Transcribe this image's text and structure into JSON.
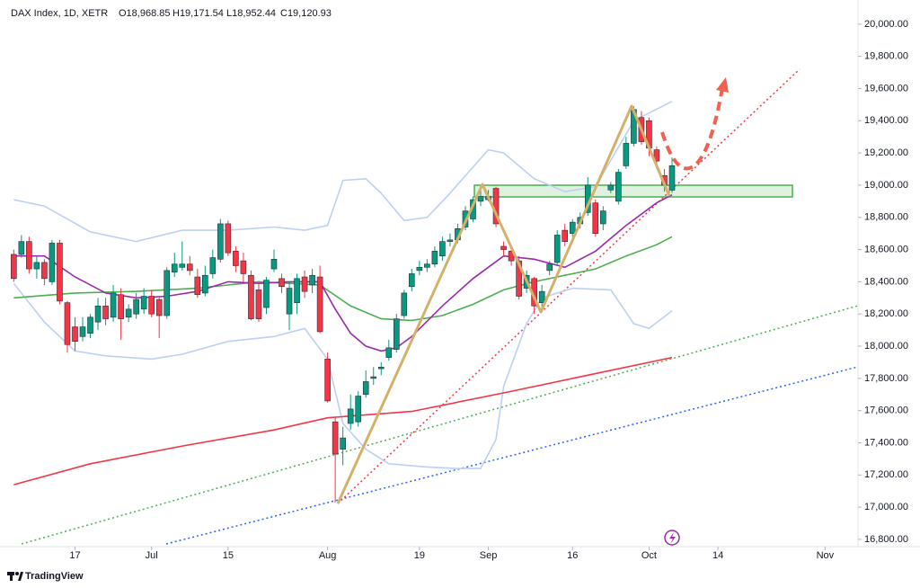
{
  "chart_data": {
    "type": "candlestick",
    "title": "DAX Index, 1D, XETR",
    "ohlc_labels": [
      "O18,968.85",
      "H19,171.54",
      "L18,952.44",
      "C19,120.93"
    ],
    "brand": "TradingView",
    "up_color": "#089981",
    "down_color": "#f23645",
    "grid": false,
    "x": [
      0,
      1,
      2,
      3,
      4,
      5,
      6,
      7,
      8,
      9,
      10,
      11,
      12,
      13,
      14,
      15,
      16,
      17,
      18,
      19,
      20,
      21,
      22,
      23,
      24,
      25,
      26,
      27,
      28,
      29,
      30,
      31,
      32,
      33,
      34,
      35,
      36,
      37,
      38,
      39,
      40,
      41,
      42,
      43,
      44,
      45,
      46,
      47,
      48,
      49,
      50,
      51,
      52,
      53,
      54,
      55,
      56,
      57,
      58,
      59,
      60,
      61,
      62,
      63,
      64,
      65,
      66,
      67,
      68,
      69,
      70,
      71,
      72,
      73,
      74,
      75,
      76,
      77,
      78,
      79,
      80,
      81,
      82,
      83,
      84,
      85,
      86
    ],
    "open": [
      18570,
      18570,
      18650,
      18480,
      18520,
      18400,
      18640,
      18270,
      18120,
      18060,
      18080,
      18150,
      18250,
      18180,
      18320,
      18180,
      18200,
      18230,
      18310,
      18290,
      18190,
      18460,
      18490,
      18510,
      18430,
      18330,
      18450,
      18540,
      18760,
      18590,
      18530,
      18440,
      18350,
      18240,
      18480,
      18420,
      18200,
      18270,
      18430,
      18380,
      18430,
      17920,
      17530,
      17360,
      17520,
      17530,
      17700,
      17800,
      17860,
      17930,
      17980,
      18190,
      18370,
      18470,
      18490,
      18510,
      18560,
      18650,
      18660,
      18740,
      18790,
      18900,
      18910,
      18980,
      18620,
      18590,
      18530,
      18360,
      18420,
      18270,
      18470,
      18520,
      18720,
      18700,
      18760,
      18830,
      18890,
      18760,
      18970,
      18900,
      19120,
      19260,
      19420,
      19400,
      19220,
      19060,
      18968.85
    ],
    "high": [
      18600,
      18690,
      18680,
      18560,
      18540,
      18660,
      18660,
      18280,
      18180,
      18180,
      18200,
      18300,
      18300,
      18380,
      18360,
      18260,
      18330,
      18360,
      18350,
      18310,
      18490,
      18580,
      18650,
      18560,
      18480,
      18500,
      18600,
      18790,
      18780,
      18620,
      18580,
      18470,
      18400,
      18430,
      18600,
      18450,
      18400,
      18450,
      18470,
      18480,
      18500,
      17960,
      17560,
      17500,
      17700,
      17720,
      17850,
      17870,
      17900,
      18040,
      18200,
      18350,
      18480,
      18530,
      18540,
      18620,
      18680,
      18700,
      18760,
      18870,
      18930,
      18990,
      18970,
      18990,
      18650,
      18600,
      18560,
      18470,
      18430,
      18380,
      18530,
      18720,
      18760,
      18790,
      18830,
      19050,
      18910,
      18870,
      19020,
      19100,
      19300,
      19490,
      19460,
      19420,
      19240,
      19100,
      19171.54
    ],
    "low": [
      18400,
      18550,
      18450,
      18420,
      18380,
      18380,
      18260,
      17960,
      17970,
      18030,
      18050,
      18100,
      18130,
      18150,
      18040,
      18150,
      18170,
      18200,
      18180,
      18050,
      18170,
      18430,
      18470,
      18440,
      18300,
      18310,
      18420,
      18520,
      18560,
      18460,
      18400,
      18160,
      18150,
      18200,
      18460,
      18330,
      18100,
      18200,
      18300,
      18330,
      18080,
      17650,
      17030,
      17260,
      17480,
      17500,
      17680,
      17760,
      17820,
      17910,
      17960,
      18170,
      18340,
      18440,
      18460,
      18490,
      18530,
      18620,
      18640,
      18720,
      18770,
      18870,
      18900,
      18740,
      18560,
      18500,
      18290,
      18330,
      18200,
      18210,
      18440,
      18500,
      18620,
      18680,
      18730,
      18810,
      18680,
      18720,
      18950,
      18880,
      19100,
      19240,
      19250,
      19180,
      19100,
      18960,
      18952.44
    ],
    "close": [
      18420,
      18650,
      18480,
      18520,
      18420,
      18640,
      18280,
      18010,
      18030,
      18120,
      18180,
      18250,
      18170,
      18330,
      18170,
      18230,
      18290,
      18310,
      18200,
      18190,
      18470,
      18510,
      18510,
      18470,
      18320,
      18440,
      18550,
      18760,
      18580,
      18500,
      18450,
      18170,
      18170,
      18410,
      18540,
      18370,
      18360,
      18420,
      18340,
      18440,
      18090,
      17660,
      17330,
      17430,
      17610,
      17690,
      17780,
      17810,
      17870,
      17990,
      18170,
      18330,
      18450,
      18490,
      18510,
      18590,
      18650,
      18660,
      18730,
      18840,
      18910,
      18930,
      18930,
      18760,
      18600,
      18530,
      18310,
      18440,
      18250,
      18340,
      18510,
      18690,
      18650,
      18770,
      18800,
      19000,
      18700,
      18840,
      19000,
      19080,
      19260,
      19470,
      19270,
      19230,
      19150,
      19000,
      19120.93
    ],
    "overlays": [
      {
        "color": "#bcd0f5",
        "x": [
          0,
          4,
          10,
          16,
          22,
          28,
          34,
          38,
          41,
          43,
          46,
          48,
          51,
          54,
          57,
          62,
          64,
          68,
          72,
          76,
          81,
          86
        ],
        "values": [
          18910,
          18870,
          18710,
          18650,
          18720,
          18720,
          18740,
          18720,
          18750,
          19030,
          19040,
          18950,
          18780,
          18800,
          18950,
          19220,
          19200,
          19040,
          18960,
          18990,
          19400,
          19520
        ]
      },
      {
        "color": "#bcd0f5",
        "x": [
          0,
          4,
          8,
          12,
          18,
          22,
          28,
          34,
          38,
          41,
          43,
          46,
          49,
          54,
          58,
          61,
          63,
          64,
          67,
          69,
          73,
          78,
          81,
          83,
          86
        ],
        "values": [
          18390,
          18150,
          17970,
          17940,
          17920,
          17950,
          18030,
          18060,
          18110,
          17920,
          17520,
          17360,
          17270,
          17250,
          17240,
          17240,
          17420,
          17750,
          18140,
          18300,
          18360,
          18350,
          18140,
          18110,
          18220
        ]
      },
      {
        "color": "#4caf50",
        "x": [
          0,
          8,
          16,
          24,
          32,
          40,
          44,
          48,
          52,
          56,
          60,
          64,
          68,
          72,
          76,
          80,
          84,
          86
        ],
        "values": [
          18300,
          18330,
          18340,
          18360,
          18400,
          18380,
          18250,
          18170,
          18160,
          18190,
          18260,
          18350,
          18400,
          18440,
          18480,
          18560,
          18630,
          18680
        ]
      },
      {
        "color": "#9c27b0",
        "x": [
          0,
          4,
          8,
          12,
          16,
          20,
          24,
          28,
          32,
          36,
          40,
          42,
          44,
          46,
          48,
          50,
          52,
          56,
          60,
          64,
          68,
          72,
          76,
          80,
          84,
          86
        ],
        "values": [
          18560,
          18560,
          18430,
          18330,
          18300,
          18310,
          18340,
          18400,
          18390,
          18400,
          18400,
          18230,
          18080,
          18000,
          17970,
          17990,
          18060,
          18250,
          18420,
          18560,
          18540,
          18490,
          18590,
          18750,
          18890,
          18940
        ]
      },
      {
        "color": "#f23645",
        "x": [
          0,
          10,
          22,
          34,
          41,
          52,
          64,
          75,
          86
        ],
        "values": [
          17140,
          17270,
          17380,
          17480,
          17555,
          17595,
          17710,
          17820,
          17930
        ]
      }
    ],
    "xlim": [
      -1.8,
      110.3
    ],
    "xticks": [
      {
        "value": 8,
        "label": "17"
      },
      {
        "value": 18,
        "label": "Jul"
      },
      {
        "value": 28,
        "label": "15"
      },
      {
        "value": 41,
        "label": "Aug"
      },
      {
        "value": 53,
        "label": "19"
      },
      {
        "value": 62,
        "label": "Sep"
      },
      {
        "value": 73,
        "label": "16"
      },
      {
        "value": 83,
        "label": "Oct"
      },
      {
        "value": 92,
        "label": "14"
      },
      {
        "value": 106,
        "label": "Nov"
      }
    ],
    "ylim": [
      16755,
      20150
    ],
    "yticks": [
      {
        "value": 16800,
        "label": "16,800.00"
      },
      {
        "value": 17000,
        "label": "17,000.00"
      },
      {
        "value": 17200,
        "label": "17,200.00"
      },
      {
        "value": 17400,
        "label": "17,400.00"
      },
      {
        "value": 17600,
        "label": "17,600.00"
      },
      {
        "value": 17800,
        "label": "17,800.00"
      },
      {
        "value": 18000,
        "label": "18,000.00"
      },
      {
        "value": 18200,
        "label": "18,200.00"
      },
      {
        "value": 18400,
        "label": "18,400.00"
      },
      {
        "value": 18600,
        "label": "18,600.00"
      },
      {
        "value": 18800,
        "label": "18,800.00"
      },
      {
        "value": 19000,
        "label": "19,000.00"
      },
      {
        "value": 19200,
        "label": "19,200.00"
      },
      {
        "value": 19400,
        "label": "19,400.00"
      },
      {
        "value": 19600,
        "label": "19,600.00"
      },
      {
        "value": 19800,
        "label": "19,800.00"
      },
      {
        "value": 20000,
        "label": "20,000.00"
      }
    ]
  }
}
